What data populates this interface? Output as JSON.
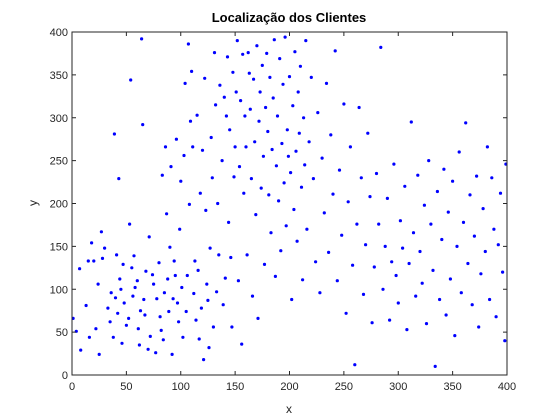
{
  "chart_data": {
    "type": "scatter",
    "title": "Localização dos Clientes",
    "xlabel": "x",
    "ylabel": "y",
    "xlim": [
      0,
      400
    ],
    "ylim": [
      0,
      400
    ],
    "xticks": [
      "0",
      "50",
      "100",
      "150",
      "200",
      "250",
      "300",
      "350",
      "400"
    ],
    "yticks": [
      "0",
      "50",
      "100",
      "150",
      "200",
      "250",
      "300",
      "350",
      "400"
    ],
    "grid": false,
    "marker_color": "#0000ff",
    "points": [
      [
        1,
        66
      ],
      [
        4,
        51
      ],
      [
        7,
        124
      ],
      [
        8,
        29
      ],
      [
        13,
        81
      ],
      [
        15,
        133
      ],
      [
        16,
        44
      ],
      [
        18,
        154
      ],
      [
        20,
        133
      ],
      [
        22,
        54
      ],
      [
        24,
        106
      ],
      [
        25,
        24
      ],
      [
        27,
        167
      ],
      [
        28,
        136
      ],
      [
        30,
        148
      ],
      [
        33,
        78
      ],
      [
        35,
        62
      ],
      [
        36,
        96
      ],
      [
        38,
        44
      ],
      [
        39,
        281
      ],
      [
        40,
        90
      ],
      [
        41,
        140
      ],
      [
        42,
        72
      ],
      [
        43,
        229
      ],
      [
        44,
        112
      ],
      [
        45,
        100
      ],
      [
        46,
        37
      ],
      [
        47,
        129
      ],
      [
        48,
        84
      ],
      [
        50,
        58
      ],
      [
        52,
        66
      ],
      [
        53,
        176
      ],
      [
        54,
        344
      ],
      [
        55,
        125
      ],
      [
        56,
        92
      ],
      [
        57,
        139
      ],
      [
        58,
        102
      ],
      [
        60,
        110
      ],
      [
        61,
        54
      ],
      [
        62,
        35
      ],
      [
        63,
        75
      ],
      [
        64,
        392
      ],
      [
        65,
        292
      ],
      [
        66,
        88
      ],
      [
        67,
        70
      ],
      [
        68,
        121
      ],
      [
        70,
        30
      ],
      [
        71,
        161
      ],
      [
        72,
        45
      ],
      [
        74,
        117
      ],
      [
        75,
        106
      ],
      [
        77,
        26
      ],
      [
        78,
        89
      ],
      [
        80,
        131
      ],
      [
        81,
        68
      ],
      [
        82,
        52
      ],
      [
        83,
        233
      ],
      [
        84,
        41
      ],
      [
        85,
        96
      ],
      [
        86,
        266
      ],
      [
        87,
        188
      ],
      [
        88,
        112
      ],
      [
        89,
        74
      ],
      [
        90,
        149
      ],
      [
        91,
        243
      ],
      [
        92,
        24
      ],
      [
        93,
        89
      ],
      [
        94,
        133
      ],
      [
        95,
        116
      ],
      [
        96,
        275
      ],
      [
        97,
        84
      ],
      [
        98,
        62
      ],
      [
        99,
        170
      ],
      [
        100,
        226
      ],
      [
        101,
        102
      ],
      [
        102,
        44
      ],
      [
        103,
        256
      ],
      [
        104,
        340
      ],
      [
        105,
        74
      ],
      [
        106,
        116
      ],
      [
        107,
        386
      ],
      [
        108,
        199
      ],
      [
        109,
        296
      ],
      [
        110,
        354
      ],
      [
        111,
        266
      ],
      [
        112,
        95
      ],
      [
        113,
        133
      ],
      [
        114,
        64
      ],
      [
        115,
        303
      ],
      [
        116,
        122
      ],
      [
        117,
        42
      ],
      [
        118,
        212
      ],
      [
        119,
        78
      ],
      [
        120,
        262
      ],
      [
        121,
        18
      ],
      [
        122,
        346
      ],
      [
        123,
        192
      ],
      [
        124,
        106
      ],
      [
        125,
        87
      ],
      [
        126,
        32
      ],
      [
        127,
        148
      ],
      [
        128,
        277
      ],
      [
        129,
        230
      ],
      [
        130,
        56
      ],
      [
        131,
        376
      ],
      [
        132,
        315
      ],
      [
        133,
        97
      ],
      [
        134,
        200
      ],
      [
        135,
        140
      ],
      [
        136,
        338
      ],
      [
        138,
        250
      ],
      [
        139,
        82
      ],
      [
        140,
        324
      ],
      [
        141,
        113
      ],
      [
        142,
        302
      ],
      [
        143,
        371
      ],
      [
        144,
        178
      ],
      [
        145,
        286
      ],
      [
        146,
        137
      ],
      [
        147,
        56
      ],
      [
        148,
        353
      ],
      [
        149,
        231
      ],
      [
        150,
        266
      ],
      [
        151,
        330
      ],
      [
        152,
        390
      ],
      [
        153,
        110
      ],
      [
        154,
        243
      ],
      [
        155,
        320
      ],
      [
        156,
        36
      ],
      [
        157,
        374
      ],
      [
        158,
        212
      ],
      [
        159,
        302
      ],
      [
        160,
        266
      ],
      [
        161,
        140
      ],
      [
        162,
        376
      ],
      [
        163,
        352
      ],
      [
        164,
        310
      ],
      [
        165,
        229
      ],
      [
        166,
        92
      ],
      [
        167,
        345
      ],
      [
        168,
        272
      ],
      [
        169,
        187
      ],
      [
        170,
        384
      ],
      [
        171,
        66
      ],
      [
        172,
        296
      ],
      [
        173,
        330
      ],
      [
        174,
        218
      ],
      [
        175,
        361
      ],
      [
        176,
        255
      ],
      [
        177,
        129
      ],
      [
        178,
        312
      ],
      [
        179,
        375
      ],
      [
        180,
        284
      ],
      [
        181,
        210
      ],
      [
        182,
        347
      ],
      [
        183,
        166
      ],
      [
        184,
        263
      ],
      [
        185,
        323
      ],
      [
        186,
        391
      ],
      [
        187,
        115
      ],
      [
        188,
        244
      ],
      [
        189,
        302
      ],
      [
        190,
        203
      ],
      [
        191,
        369
      ],
      [
        192,
        145
      ],
      [
        193,
        270
      ],
      [
        194,
        339
      ],
      [
        195,
        224
      ],
      [
        196,
        394
      ],
      [
        197,
        174
      ],
      [
        198,
        286
      ],
      [
        199,
        255
      ],
      [
        200,
        348
      ],
      [
        201,
        236
      ],
      [
        202,
        88
      ],
      [
        203,
        314
      ],
      [
        204,
        193
      ],
      [
        205,
        377
      ],
      [
        206,
        261
      ],
      [
        207,
        156
      ],
      [
        208,
        330
      ],
      [
        209,
        282
      ],
      [
        210,
        360
      ],
      [
        211,
        219
      ],
      [
        212,
        111
      ],
      [
        213,
        300
      ],
      [
        214,
        245
      ],
      [
        215,
        390
      ],
      [
        216,
        170
      ],
      [
        218,
        272
      ],
      [
        220,
        347
      ],
      [
        222,
        229
      ],
      [
        224,
        132
      ],
      [
        226,
        306
      ],
      [
        228,
        96
      ],
      [
        230,
        253
      ],
      [
        232,
        189
      ],
      [
        234,
        340
      ],
      [
        236,
        143
      ],
      [
        238,
        280
      ],
      [
        240,
        211
      ],
      [
        242,
        378
      ],
      [
        244,
        110
      ],
      [
        246,
        239
      ],
      [
        248,
        163
      ],
      [
        250,
        316
      ],
      [
        252,
        72
      ],
      [
        254,
        202
      ],
      [
        256,
        266
      ],
      [
        258,
        128
      ],
      [
        260,
        12
      ],
      [
        262,
        176
      ],
      [
        264,
        312
      ],
      [
        266,
        230
      ],
      [
        268,
        94
      ],
      [
        270,
        152
      ],
      [
        272,
        282
      ],
      [
        274,
        208
      ],
      [
        276,
        61
      ],
      [
        278,
        126
      ],
      [
        280,
        235
      ],
      [
        282,
        176
      ],
      [
        284,
        382
      ],
      [
        286,
        100
      ],
      [
        288,
        150
      ],
      [
        290,
        206
      ],
      [
        292,
        64
      ],
      [
        294,
        132
      ],
      [
        296,
        246
      ],
      [
        298,
        116
      ],
      [
        300,
        84
      ],
      [
        302,
        180
      ],
      [
        304,
        148
      ],
      [
        306,
        220
      ],
      [
        308,
        53
      ],
      [
        310,
        130
      ],
      [
        312,
        295
      ],
      [
        314,
        166
      ],
      [
        316,
        92
      ],
      [
        318,
        233
      ],
      [
        320,
        144
      ],
      [
        322,
        107
      ],
      [
        324,
        198
      ],
      [
        326,
        60
      ],
      [
        328,
        250
      ],
      [
        330,
        176
      ],
      [
        332,
        122
      ],
      [
        334,
        10
      ],
      [
        336,
        214
      ],
      [
        338,
        88
      ],
      [
        340,
        158
      ],
      [
        342,
        240
      ],
      [
        344,
        70
      ],
      [
        346,
        190
      ],
      [
        348,
        112
      ],
      [
        350,
        226
      ],
      [
        352,
        46
      ],
      [
        354,
        150
      ],
      [
        356,
        260
      ],
      [
        358,
        96
      ],
      [
        360,
        178
      ],
      [
        362,
        294
      ],
      [
        364,
        130
      ],
      [
        366,
        210
      ],
      [
        368,
        82
      ],
      [
        370,
        162
      ],
      [
        372,
        232
      ],
      [
        374,
        56
      ],
      [
        376,
        118
      ],
      [
        378,
        194
      ],
      [
        380,
        144
      ],
      [
        382,
        266
      ],
      [
        384,
        88
      ],
      [
        386,
        230
      ],
      [
        388,
        170
      ],
      [
        390,
        68
      ],
      [
        392,
        152
      ],
      [
        394,
        212
      ],
      [
        396,
        120
      ],
      [
        398,
        40
      ],
      [
        399,
        246
      ]
    ]
  }
}
